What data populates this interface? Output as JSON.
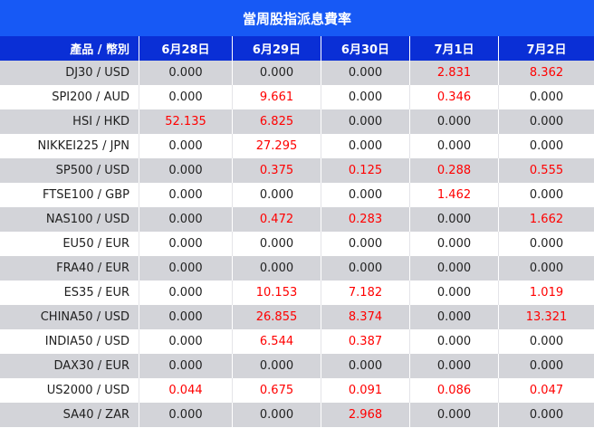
{
  "title": "當周股指派息費率",
  "header": {
    "product": "產品 / 幣別",
    "dates": [
      "6月28日",
      "6月29日",
      "6月30日",
      "7月1日",
      "7月2日"
    ]
  },
  "rows": [
    {
      "product": "DJ30 / USD",
      "values": [
        "0.000",
        "0.000",
        "0.000",
        "2.831",
        "8.362"
      ]
    },
    {
      "product": "SPI200 / AUD",
      "values": [
        "0.000",
        "9.661",
        "0.000",
        "0.346",
        "0.000"
      ]
    },
    {
      "product": "HSI / HKD",
      "values": [
        "52.135",
        "6.825",
        "0.000",
        "0.000",
        "0.000"
      ]
    },
    {
      "product": "NIKKEI225 / JPN",
      "values": [
        "0.000",
        "27.295",
        "0.000",
        "0.000",
        "0.000"
      ]
    },
    {
      "product": "SP500 / USD",
      "values": [
        "0.000",
        "0.375",
        "0.125",
        "0.288",
        "0.555"
      ]
    },
    {
      "product": "FTSE100 / GBP",
      "values": [
        "0.000",
        "0.000",
        "0.000",
        "1.462",
        "0.000"
      ]
    },
    {
      "product": "NAS100 / USD",
      "values": [
        "0.000",
        "0.472",
        "0.283",
        "0.000",
        "1.662"
      ]
    },
    {
      "product": "EU50 / EUR",
      "values": [
        "0.000",
        "0.000",
        "0.000",
        "0.000",
        "0.000"
      ]
    },
    {
      "product": "FRA40 / EUR",
      "values": [
        "0.000",
        "0.000",
        "0.000",
        "0.000",
        "0.000"
      ]
    },
    {
      "product": "ES35 / EUR",
      "values": [
        "0.000",
        "10.153",
        "7.182",
        "0.000",
        "1.019"
      ]
    },
    {
      "product": "CHINA50 / USD",
      "values": [
        "0.000",
        "26.855",
        "8.374",
        "0.000",
        "13.321"
      ]
    },
    {
      "product": "INDIA50 / USD",
      "values": [
        "0.000",
        "6.544",
        "0.387",
        "0.000",
        "0.000"
      ]
    },
    {
      "product": "DAX30 / EUR",
      "values": [
        "0.000",
        "0.000",
        "0.000",
        "0.000",
        "0.000"
      ]
    },
    {
      "product": "US2000 / USD",
      "values": [
        "0.044",
        "0.675",
        "0.091",
        "0.086",
        "0.047"
      ]
    },
    {
      "product": "SA40 / ZAR",
      "values": [
        "0.000",
        "0.000",
        "2.968",
        "0.000",
        "0.000"
      ]
    }
  ],
  "colors": {
    "title_bg": "#1759f5",
    "header_bg": "#0a2fd6",
    "stripe": "#d3d4d9",
    "nonzero_value": "#ff0000",
    "zero_value": "#222222"
  }
}
